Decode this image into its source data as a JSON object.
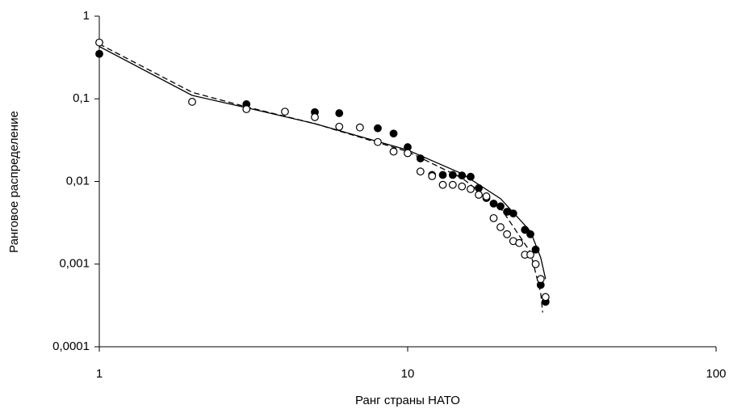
{
  "chart_data": {
    "type": "scatter",
    "x_label": "Ранг страны НАТО",
    "y_label": "Ранговое распределение",
    "xscale": "log",
    "yscale": "log",
    "xlim": [
      1,
      100
    ],
    "ylim": [
      0.0001,
      1
    ],
    "xticks": [
      1,
      10,
      100
    ],
    "yticks": [
      {
        "value": 0.0001,
        "label": "0,0001"
      },
      {
        "value": 0.001,
        "label": "0,001"
      },
      {
        "value": 0.01,
        "label": "0,01"
      },
      {
        "value": 0.1,
        "label": "0,1"
      },
      1
    ],
    "series": [
      {
        "kind": "points",
        "marker": "filled",
        "color": "#000000",
        "x": [
          1,
          3,
          5,
          6,
          8,
          9,
          10,
          11,
          12,
          13,
          14,
          15,
          16,
          17,
          18,
          19,
          20,
          21,
          22,
          24,
          25,
          26,
          27,
          28
        ],
        "values": [
          0.35,
          0.086,
          0.069,
          0.067,
          0.044,
          0.038,
          0.026,
          0.019,
          0.012,
          0.012,
          0.012,
          0.0118,
          0.0114,
          0.0083,
          0.0063,
          0.0054,
          0.005,
          0.0043,
          0.0041,
          0.0026,
          0.0023,
          0.0015,
          0.00056,
          0.00035
        ]
      },
      {
        "kind": "points",
        "marker": "open",
        "color": "#000000",
        "x": [
          1,
          2,
          3,
          4,
          5,
          6,
          7,
          8,
          9,
          10,
          11,
          12,
          13,
          14,
          15,
          16,
          17,
          18,
          19,
          20,
          21,
          22,
          23,
          24,
          25,
          26,
          27,
          28
        ],
        "values": [
          0.48,
          0.092,
          0.075,
          0.07,
          0.06,
          0.046,
          0.045,
          0.03,
          0.023,
          0.022,
          0.0132,
          0.0116,
          0.0091,
          0.0091,
          0.0087,
          0.0081,
          0.0069,
          0.0066,
          0.0036,
          0.0028,
          0.0023,
          0.0019,
          0.0018,
          0.0013,
          0.0013,
          0.001,
          0.00066,
          0.0004
        ]
      },
      {
        "kind": "line",
        "line_style": "solid",
        "color": "#000000",
        "x": [
          1,
          2,
          3,
          5,
          10,
          15,
          20,
          25,
          27,
          28
        ],
        "values": [
          0.43,
          0.11,
          0.078,
          0.05,
          0.024,
          0.0124,
          0.0062,
          0.0025,
          0.0012,
          0.00066
        ]
      },
      {
        "kind": "line",
        "line_style": "dashed",
        "color": "#000000",
        "x": [
          1,
          2,
          3,
          5,
          10,
          15,
          20,
          25,
          27,
          27.4
        ],
        "values": [
          0.46,
          0.12,
          0.08,
          0.05,
          0.023,
          0.011,
          0.0048,
          0.0014,
          0.00045,
          0.00026
        ]
      }
    ]
  }
}
